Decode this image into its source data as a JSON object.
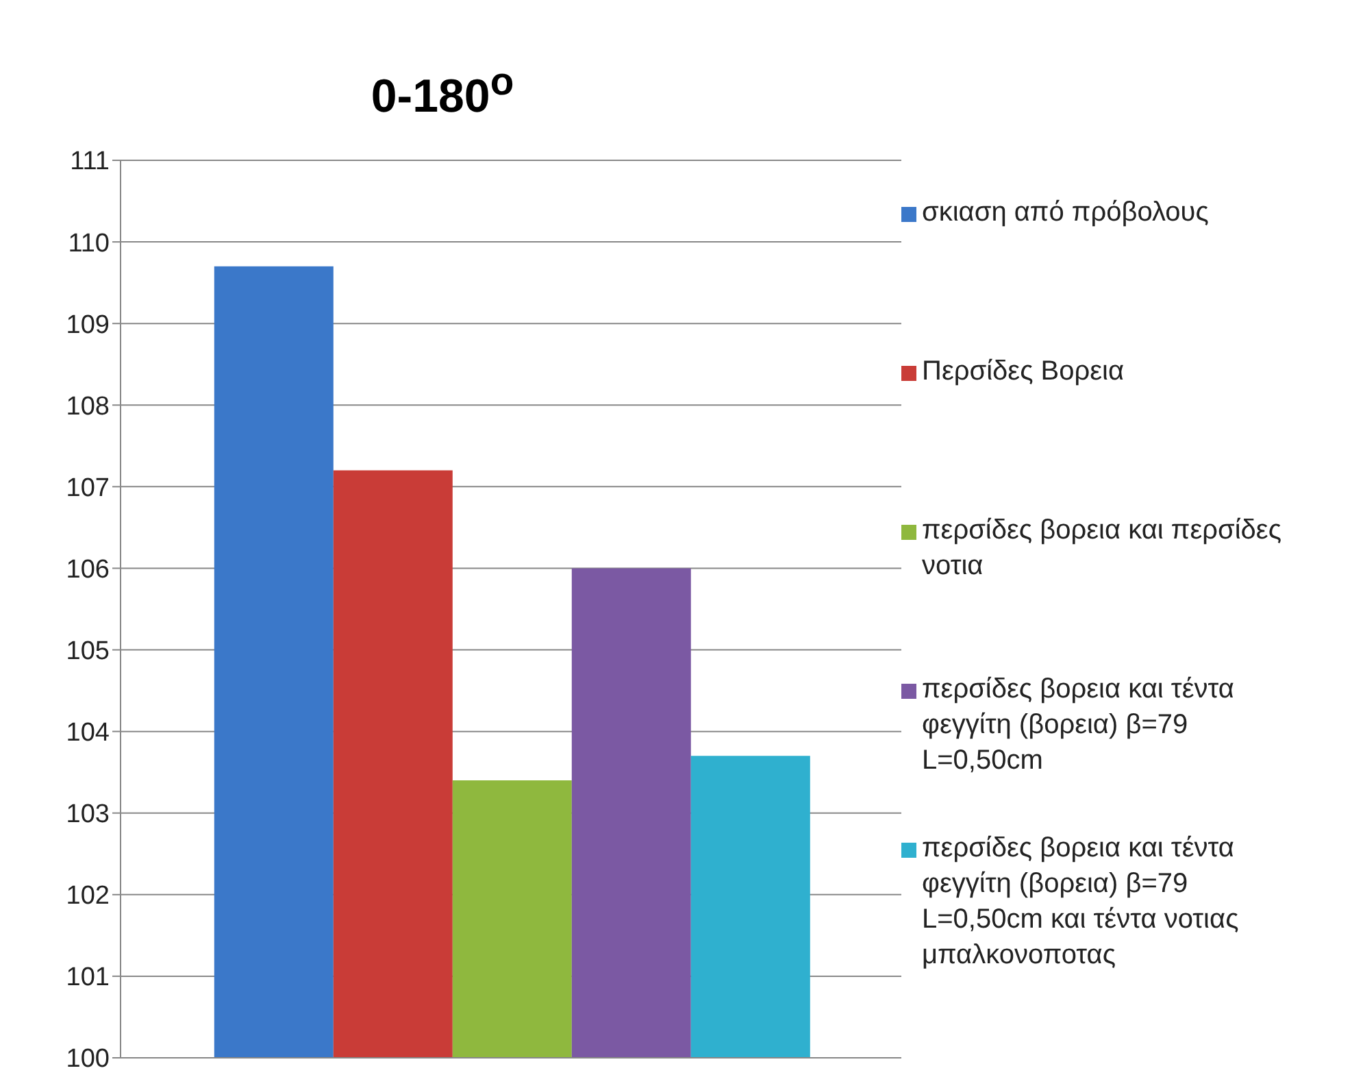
{
  "chart_data": {
    "type": "bar",
    "title": "0-180$^{o}$",
    "categories": [
      null
    ],
    "series": [
      {
        "name": "σκιαση από πρόβολους",
        "color": "#3b78c9",
        "values": [
          109.7
        ]
      },
      {
        "name": "Περσίδες  Βορεια",
        "color": "#c93c37",
        "values": [
          107.2
        ]
      },
      {
        "name": "περσίδες βορεια και περσίδες νοτια",
        "color": "#8fb83e",
        "values": [
          103.4
        ]
      },
      {
        "name": "περσίδες βορεια και τέντα φεγγίτη (βορεια) β=79 L=0,50cm",
        "color": "#7b59a3",
        "values": [
          106.0
        ]
      },
      {
        "name": "περσίδες βορεια και τέντα φεγγίτη (βορεια) β=79 L=0,50cm και τέντα νοτιας μπαλκονοποτας",
        "color": "#2fb0cf",
        "values": [
          103.7
        ]
      }
    ],
    "ylim": [
      100,
      111
    ],
    "yticks": [
      100,
      101,
      102,
      103,
      104,
      105,
      106,
      107,
      108,
      109,
      110,
      111
    ],
    "grid": "y",
    "legend": "right",
    "tick_labels": "y"
  }
}
